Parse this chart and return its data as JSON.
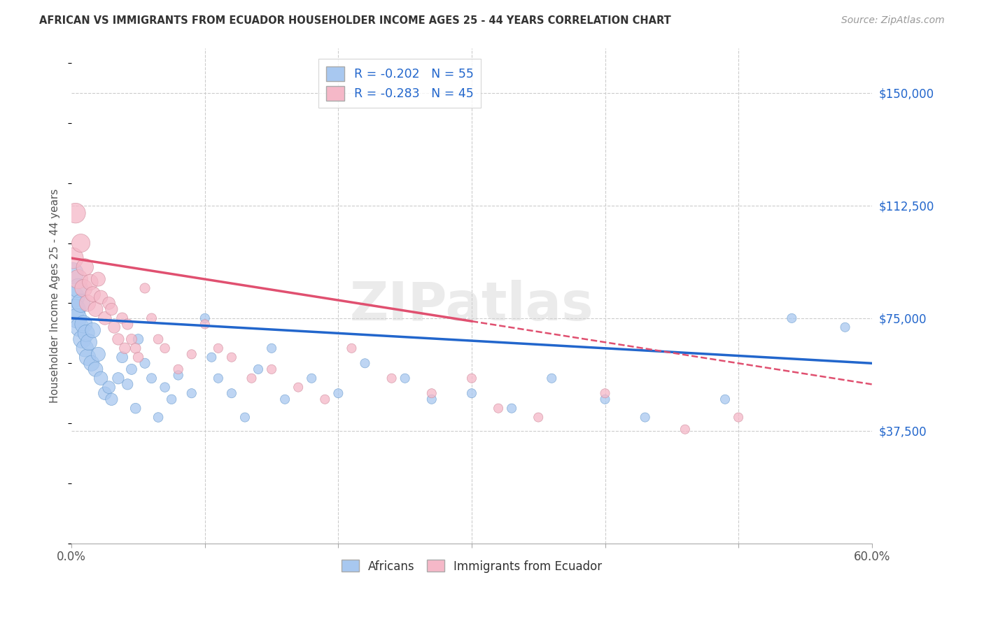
{
  "title": "AFRICAN VS IMMIGRANTS FROM ECUADOR HOUSEHOLDER INCOME AGES 25 - 44 YEARS CORRELATION CHART",
  "source": "Source: ZipAtlas.com",
  "ylabel": "Householder Income Ages 25 - 44 years",
  "xlim": [
    0.0,
    0.6
  ],
  "ylim": [
    0,
    165000
  ],
  "xticks": [
    0.0,
    0.1,
    0.2,
    0.3,
    0.4,
    0.5,
    0.6
  ],
  "xticklabels": [
    "0.0%",
    "",
    "",
    "",
    "",
    "",
    "60.0%"
  ],
  "ytick_positions": [
    37500,
    75000,
    112500,
    150000
  ],
  "ytick_labels": [
    "$37,500",
    "$75,000",
    "$112,500",
    "$150,000"
  ],
  "africans_R": -0.202,
  "africans_N": 55,
  "ecuador_R": -0.283,
  "ecuador_N": 45,
  "blue_color": "#a8c8f0",
  "pink_color": "#f5b8c8",
  "blue_line_color": "#2266cc",
  "pink_line_color": "#e05070",
  "watermark": "ZIPatlas",
  "legend_label1": "R = -0.202   N = 55",
  "legend_label2": "R = -0.283   N = 45",
  "africans_x": [
    0.001,
    0.002,
    0.003,
    0.004,
    0.005,
    0.006,
    0.007,
    0.008,
    0.009,
    0.01,
    0.011,
    0.012,
    0.013,
    0.015,
    0.016,
    0.018,
    0.02,
    0.022,
    0.025,
    0.028,
    0.03,
    0.035,
    0.038,
    0.042,
    0.045,
    0.048,
    0.05,
    0.055,
    0.06,
    0.065,
    0.07,
    0.075,
    0.08,
    0.09,
    0.1,
    0.105,
    0.11,
    0.12,
    0.13,
    0.14,
    0.15,
    0.16,
    0.18,
    0.2,
    0.22,
    0.25,
    0.27,
    0.3,
    0.33,
    0.36,
    0.4,
    0.43,
    0.49,
    0.54,
    0.58
  ],
  "africans_y": [
    90000,
    82000,
    78000,
    75000,
    85000,
    72000,
    80000,
    68000,
    73000,
    65000,
    70000,
    62000,
    67000,
    60000,
    71000,
    58000,
    63000,
    55000,
    50000,
    52000,
    48000,
    55000,
    62000,
    53000,
    58000,
    45000,
    68000,
    60000,
    55000,
    42000,
    52000,
    48000,
    56000,
    50000,
    75000,
    62000,
    55000,
    50000,
    42000,
    58000,
    65000,
    48000,
    55000,
    50000,
    60000,
    55000,
    48000,
    50000,
    45000,
    55000,
    48000,
    42000,
    48000,
    75000,
    72000
  ],
  "ecuador_x": [
    0.001,
    0.003,
    0.005,
    0.007,
    0.009,
    0.01,
    0.012,
    0.014,
    0.016,
    0.018,
    0.02,
    0.022,
    0.025,
    0.028,
    0.03,
    0.032,
    0.035,
    0.038,
    0.04,
    0.042,
    0.045,
    0.048,
    0.05,
    0.055,
    0.06,
    0.065,
    0.07,
    0.08,
    0.09,
    0.1,
    0.11,
    0.12,
    0.135,
    0.15,
    0.17,
    0.19,
    0.21,
    0.24,
    0.27,
    0.3,
    0.32,
    0.35,
    0.4,
    0.46,
    0.5
  ],
  "ecuador_y": [
    95000,
    110000,
    88000,
    100000,
    85000,
    92000,
    80000,
    87000,
    83000,
    78000,
    88000,
    82000,
    75000,
    80000,
    78000,
    72000,
    68000,
    75000,
    65000,
    73000,
    68000,
    65000,
    62000,
    85000,
    75000,
    68000,
    65000,
    58000,
    63000,
    73000,
    65000,
    62000,
    55000,
    58000,
    52000,
    48000,
    65000,
    55000,
    50000,
    55000,
    45000,
    42000,
    50000,
    38000,
    42000
  ],
  "blue_intercept": 75000,
  "blue_slope": -25000,
  "pink_intercept": 95000,
  "pink_slope": -70000,
  "pink_line_end_solid": 0.3,
  "pink_line_end_dash": 0.6
}
